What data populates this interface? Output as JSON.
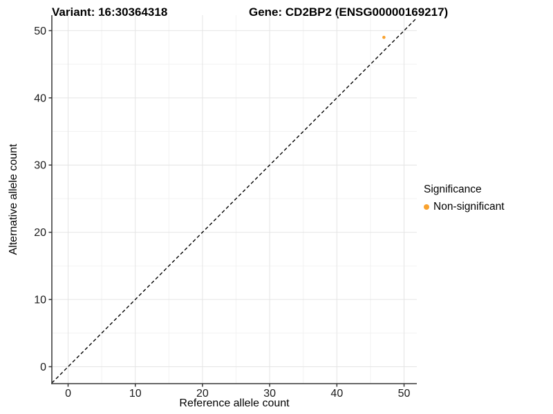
{
  "chart_data": {
    "type": "scatter",
    "title_left": "Variant: 16:30364318",
    "title_right": "Gene: CD2BP2 (ENSG00000169217)",
    "xlabel": "Reference allele count",
    "ylabel": "Alternative allele count",
    "x_ticks": [
      0,
      10,
      20,
      30,
      40,
      50
    ],
    "y_ticks": [
      0,
      10,
      20,
      30,
      40,
      50
    ],
    "minor_ticks": [
      5,
      15,
      25,
      35,
      45
    ],
    "xlim": [
      -2.42,
      51.9
    ],
    "ylim": [
      -2.52,
      52.3
    ],
    "grid": "major and minor gridlines, white panel background",
    "legend": {
      "title": "Significance",
      "position": "right",
      "items": [
        {
          "label": "Non-significant",
          "color": "#F9A22E"
        }
      ]
    },
    "series": [
      {
        "name": "Non-significant",
        "color": "#F9A22E",
        "points": [
          [
            47,
            49
          ]
        ]
      }
    ],
    "reference_line": {
      "slope": 1,
      "intercept": 0,
      "style": "dashed",
      "color": "#000000"
    },
    "colors": {
      "grid_major": "#E4E4E4",
      "grid_minor": "#F2F2F2",
      "axis": "#333333",
      "text": "#1a1a1a",
      "background": "#ffffff"
    }
  }
}
